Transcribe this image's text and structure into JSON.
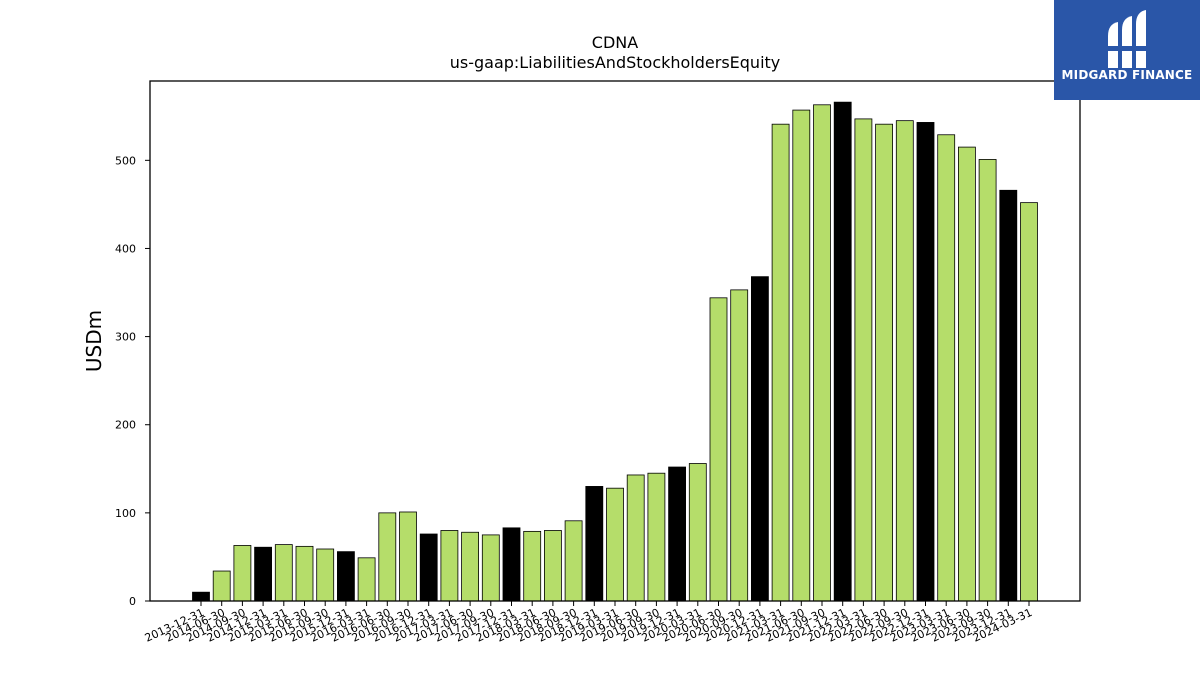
{
  "chart_data": {
    "type": "bar",
    "title": "CDNA",
    "subtitle": "us-gaap:LiabilitiesAndStockholdersEquity",
    "ylabel": "USDm",
    "xlabel": "",
    "ylim": [
      0,
      590
    ],
    "yticks": [
      0,
      100,
      200,
      300,
      400,
      500
    ],
    "grid": false,
    "categories": [
      "2013-12-31",
      "2014-06-30",
      "2014-09-30",
      "2014-12-31",
      "2015-03-31",
      "2015-06-30",
      "2015-09-30",
      "2015-12-31",
      "2016-03-31",
      "2016-06-30",
      "2016-09-30",
      "2016-12-31",
      "2017-03-31",
      "2017-06-30",
      "2017-09-30",
      "2017-12-31",
      "2018-03-31",
      "2018-06-30",
      "2018-09-30",
      "2018-12-31",
      "2019-03-31",
      "2019-06-30",
      "2019-09-30",
      "2019-12-31",
      "2020-03-31",
      "2020-06-30",
      "2020-09-30",
      "2020-12-31",
      "2021-03-31",
      "2021-06-30",
      "2021-09-30",
      "2021-12-31",
      "2022-03-31",
      "2022-06-30",
      "2022-09-30",
      "2022-12-31",
      "2023-03-31",
      "2023-06-30",
      "2023-09-30",
      "2023-12-31",
      "2024-03-31"
    ],
    "values": [
      10,
      34,
      63,
      61,
      64,
      62,
      59,
      56,
      49,
      100,
      101,
      76,
      80,
      78,
      75,
      83,
      79,
      80,
      91,
      130,
      128,
      143,
      145,
      152,
      156,
      344,
      353,
      368,
      541,
      557,
      563,
      566,
      547,
      541,
      545,
      543,
      529,
      515,
      501,
      466,
      452
    ],
    "colors": {
      "quarter": "#b5dd6a",
      "year_end": "#000000",
      "edge": "#000000"
    }
  },
  "logo": {
    "text": "MIDGARD FINANCE",
    "background": "#2a56a8"
  }
}
